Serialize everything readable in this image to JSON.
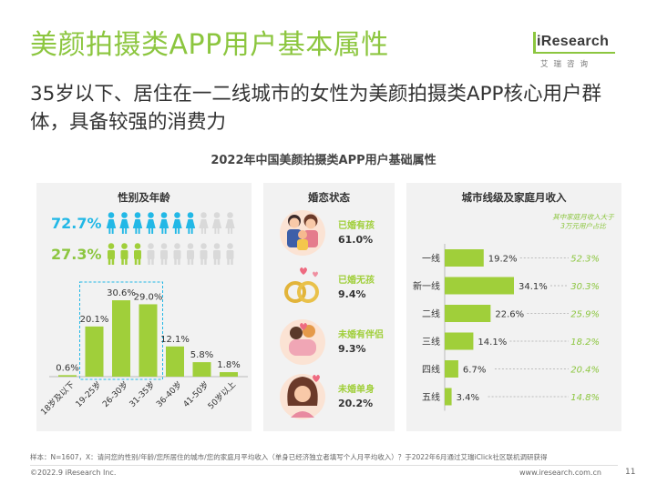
{
  "title": "美颜拍摄类APP用户基本属性",
  "subtitle": "35岁以下、居住在一二线城市的女性为美颜拍摄类APP核心用户群体，具备较强的消费力",
  "logo": {
    "text": "iResearch",
    "sub": "艾瑞咨询"
  },
  "chart_title": "2022年中国美颜拍摄类APP用户基础属性",
  "colors": {
    "green": "#8cc63f",
    "light_green": "#a0cf3a",
    "blue": "#22b8e6",
    "gray_icon": "#d9d9d9",
    "note_green": "#8cc63f"
  },
  "panel1": {
    "title": "性别及年龄",
    "female_pct": "72.7%",
    "male_pct": "27.3%",
    "chart_data": {
      "type": "bar",
      "categories": [
        "18岁及以下",
        "19-25岁",
        "26-30岁",
        "31-35岁",
        "36-40岁",
        "41-50岁",
        "50岁以上"
      ],
      "values": [
        0.6,
        20.1,
        30.6,
        29.0,
        12.1,
        5.8,
        1.8
      ],
      "labels": [
        "0.6%",
        "20.1%",
        "30.6%",
        "29.0%",
        "12.1%",
        "5.8%",
        "1.8%"
      ],
      "highlight": [
        1,
        3
      ],
      "ylim": [
        0,
        35
      ]
    }
  },
  "panel2": {
    "title": "婚恋状态",
    "items": [
      {
        "label": "已婚有孩",
        "value": "61.0%",
        "icon": "family-icon"
      },
      {
        "label": "已婚无孩",
        "value": "9.4%",
        "icon": "rings-icon"
      },
      {
        "label": "未婚有伴侣",
        "value": "9.3%",
        "icon": "couple-icon"
      },
      {
        "label": "未婚单身",
        "value": "20.2%",
        "icon": "single-woman-icon"
      }
    ]
  },
  "panel3": {
    "title": "城市线级及家庭月收入",
    "note": "其中家庭月收入大于3万元用户占比",
    "chart_data": {
      "type": "bar",
      "orientation": "horizontal",
      "categories": [
        "一线",
        "新一线",
        "二线",
        "三线",
        "四线",
        "五线"
      ],
      "values": [
        19.2,
        34.1,
        22.6,
        14.1,
        6.7,
        3.4
      ],
      "labels": [
        "19.2%",
        "34.1%",
        "22.6%",
        "14.1%",
        "6.7%",
        "3.4%"
      ],
      "income_share": [
        "52.3%",
        "30.3%",
        "25.9%",
        "18.2%",
        "20.4%",
        "14.8%"
      ],
      "xlim": [
        0,
        35
      ]
    }
  },
  "footnote": "样本：N=1607，X：请问您的性别/年龄/您所居住的城市/您的家庭月平均收入（单身已经济独立者填写个人月平均收入）？于2022年6月通过艾瑞iClick社区联机调研获得",
  "footer": {
    "copyright": "©2022.9 iResearch Inc.",
    "url": "www.iresearch.com.cn",
    "page": "11"
  }
}
